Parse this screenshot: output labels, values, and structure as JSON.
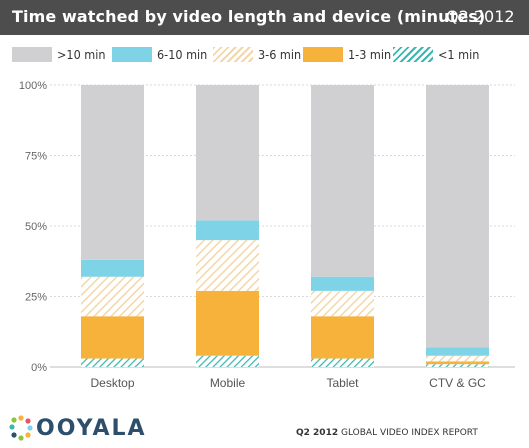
{
  "header": {
    "title": "Time watched by video length and device (minutes)",
    "period": "Q2 2012"
  },
  "legend": [
    {
      "label": ">10 min",
      "color": "#d0d0d2",
      "pattern": "solid"
    },
    {
      "label": "6-10 min",
      "color": "#7fd3e6",
      "pattern": "solid"
    },
    {
      "label": "3-6 min",
      "color": "#f3d7a8",
      "pattern": "hatch"
    },
    {
      "label": "1-3 min",
      "color": "#f7b23b",
      "pattern": "solid"
    },
    {
      "label": "<1 min",
      "color": "#3bb7b3",
      "pattern": "hatch"
    }
  ],
  "chart_data": {
    "type": "bar",
    "stacked": true,
    "categories": [
      "Desktop",
      "Mobile",
      "Tablet",
      "CTV & GC"
    ],
    "series": [
      {
        "name": "<1 min",
        "values": [
          3,
          4,
          3,
          1
        ]
      },
      {
        "name": "1-3 min",
        "values": [
          15,
          23,
          15,
          1
        ]
      },
      {
        "name": "3-6 min",
        "values": [
          14,
          18,
          9,
          2
        ]
      },
      {
        "name": "6-10 min",
        "values": [
          6,
          7,
          5,
          3
        ]
      },
      {
        "name": ">10 min",
        "values": [
          62,
          48,
          68,
          93
        ]
      }
    ],
    "yticks": [
      "0%",
      "25%",
      "50%",
      "75%",
      "100%"
    ],
    "ylim": [
      0,
      100
    ],
    "grid": true
  },
  "footer": {
    "brand": "OOYALA",
    "report_bold": "Q2 2012",
    "report_rest": "GLOBAL VIDEO INDEX REPORT"
  }
}
